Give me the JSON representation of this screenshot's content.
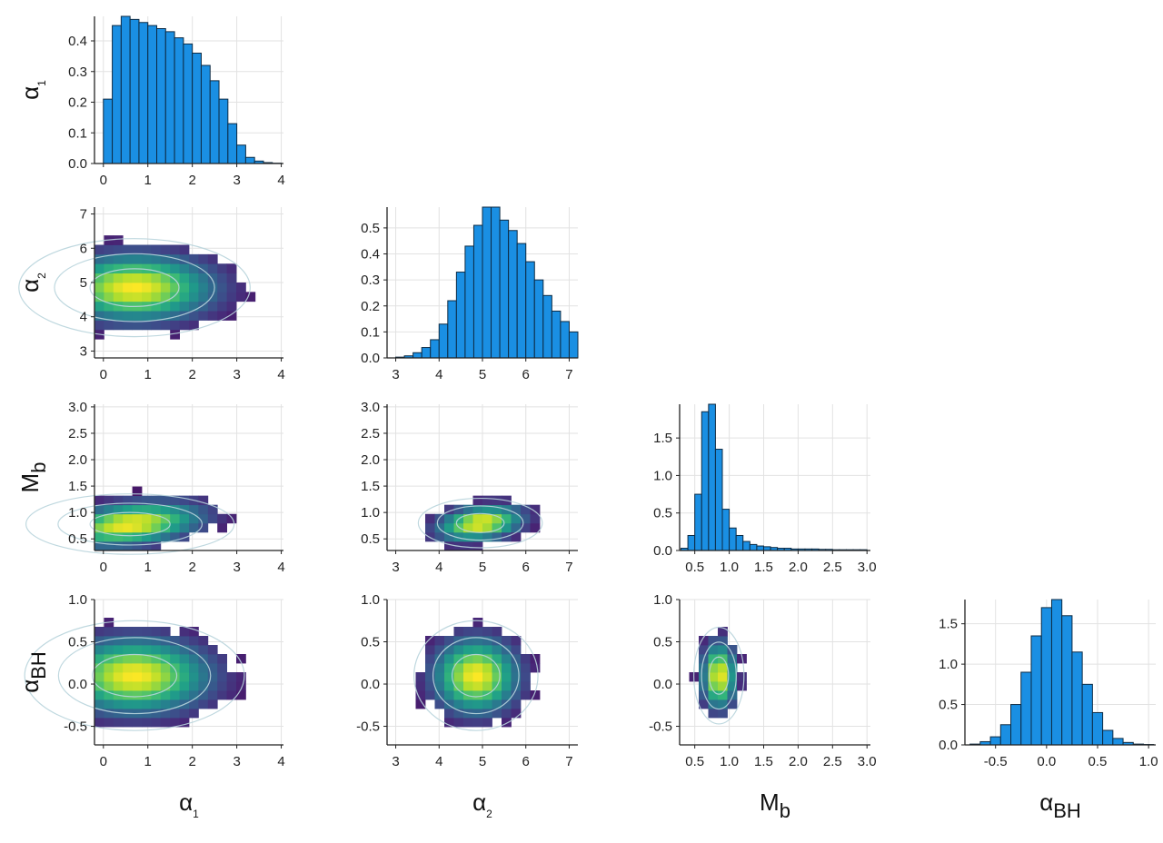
{
  "chart_data": {
    "type": "corner",
    "colors": {
      "hist_fill": "#1a8fe3",
      "hist_edge": "#0d2b44",
      "contour": "#b8d4dc",
      "background": "#ffffff"
    },
    "variables": [
      {
        "key": "a1",
        "symbol": "α",
        "sub": "1",
        "range": [
          -0.2,
          4.05
        ],
        "ticks": [
          0,
          1,
          2,
          3,
          4
        ],
        "tick_labels": [
          "0",
          "1",
          "2",
          "3",
          "4"
        ],
        "hist_ylim": [
          0,
          0.48
        ],
        "hist_yticks": [
          0.0,
          0.1,
          0.2,
          0.3,
          0.4
        ],
        "hist_ytick_labels": [
          "0.0",
          "0.1",
          "0.2",
          "0.3",
          "0.4"
        ],
        "hist_bins": {
          "start": 0.0,
          "width": 0.2,
          "density": [
            0.21,
            0.45,
            0.48,
            0.47,
            0.46,
            0.45,
            0.44,
            0.43,
            0.41,
            0.39,
            0.36,
            0.32,
            0.27,
            0.21,
            0.13,
            0.06,
            0.02,
            0.008,
            0.003,
            0.001
          ]
        }
      },
      {
        "key": "a2",
        "symbol": "α",
        "sub": "2",
        "range": [
          2.8,
          7.2
        ],
        "ticks": [
          3,
          4,
          5,
          6,
          7
        ],
        "tick_labels": [
          "3",
          "4",
          "5",
          "6",
          "7"
        ],
        "hist_ylim": [
          0,
          0.58
        ],
        "hist_yticks": [
          0.0,
          0.1,
          0.2,
          0.3,
          0.4,
          0.5
        ],
        "hist_ytick_labels": [
          "0.0",
          "0.1",
          "0.2",
          "0.3",
          "0.4",
          "0.5"
        ],
        "hist_bins": {
          "start": 3.0,
          "width": 0.2,
          "density": [
            0.003,
            0.008,
            0.02,
            0.04,
            0.07,
            0.13,
            0.22,
            0.33,
            0.43,
            0.51,
            0.58,
            0.58,
            0.53,
            0.49,
            0.44,
            0.37,
            0.3,
            0.24,
            0.18,
            0.14,
            0.1
          ]
        }
      },
      {
        "key": "mb",
        "symbol": "M",
        "sub": "b",
        "range": [
          0.28,
          3.05
        ],
        "ticks": [
          0.5,
          1.0,
          1.5,
          2.0,
          2.5,
          3.0
        ],
        "tick_labels": [
          "0.5",
          "1.0",
          "1.5",
          "2.0",
          "2.5",
          "3.0"
        ],
        "hist_ylim": [
          0,
          1.95
        ],
        "hist_yticks": [
          0.0,
          0.5,
          1.0,
          1.5
        ],
        "hist_ytick_labels": [
          "0.0",
          "0.5",
          "1.0",
          "1.5"
        ],
        "hist_bins": {
          "start": 0.3,
          "width": 0.1,
          "density": [
            0.03,
            0.2,
            0.75,
            1.85,
            1.95,
            1.35,
            0.55,
            0.3,
            0.2,
            0.12,
            0.08,
            0.06,
            0.05,
            0.04,
            0.03,
            0.03,
            0.02,
            0.02,
            0.02,
            0.02,
            0.015,
            0.015,
            0.01,
            0.01,
            0.01,
            0.01,
            0.01
          ]
        }
      },
      {
        "key": "abh",
        "symbol": "α",
        "sub": "BH",
        "range": [
          -0.8,
          1.07
        ],
        "ticks": [
          -0.5,
          0.0,
          0.5,
          1.0
        ],
        "tick_labels": [
          "-0.5",
          "0.0",
          "0.5",
          "1.0"
        ],
        "pair_ticks": [
          -0.5,
          0.0,
          0.5,
          1.0
        ],
        "pair_tick_labels": [
          "-0.5",
          "0.0",
          "0.5",
          "1.0"
        ],
        "pair_range": [
          -0.72,
          1.0
        ],
        "hist_ylim": [
          0,
          1.8
        ],
        "hist_yticks": [
          0.0,
          0.5,
          1.0,
          1.5
        ],
        "hist_ytick_labels": [
          "0.0",
          "0.5",
          "1.0",
          "1.5"
        ],
        "hist_bins": {
          "start": -0.75,
          "width": 0.1,
          "density": [
            0.01,
            0.04,
            0.1,
            0.25,
            0.5,
            0.9,
            1.35,
            1.7,
            1.8,
            1.6,
            1.15,
            0.75,
            0.4,
            0.18,
            0.08,
            0.03,
            0.01,
            0.005
          ]
        }
      }
    ],
    "pairs": [
      {
        "x": "a1",
        "y": "a2",
        "mean": [
          0.7,
          4.85
        ],
        "sd": [
          1.0,
          0.55
        ],
        "rho": 0.0
      },
      {
        "x": "a1",
        "y": "mb",
        "mean": [
          0.6,
          0.78
        ],
        "sd": [
          0.9,
          0.22
        ],
        "rho": 0.35
      },
      {
        "x": "a2",
        "y": "mb",
        "mean": [
          4.95,
          0.8
        ],
        "sd": [
          0.55,
          0.18
        ],
        "rho": 0.3
      },
      {
        "x": "a1",
        "y": "abh",
        "mean": [
          0.7,
          0.1
        ],
        "sd": [
          0.95,
          0.25
        ],
        "rho": 0.0
      },
      {
        "x": "a2",
        "y": "abh",
        "mean": [
          4.85,
          0.1
        ],
        "sd": [
          0.55,
          0.25
        ],
        "rho": 0.0
      },
      {
        "x": "mb",
        "y": "abh",
        "mean": [
          0.85,
          0.1
        ],
        "sd": [
          0.14,
          0.22
        ],
        "rho": 0.0
      }
    ],
    "row_labels": [
      "α₁",
      "α₂",
      "M_b",
      "α_BH"
    ],
    "column_labels": [
      "α₁",
      "α₂",
      "M_b",
      "α_BH"
    ]
  }
}
